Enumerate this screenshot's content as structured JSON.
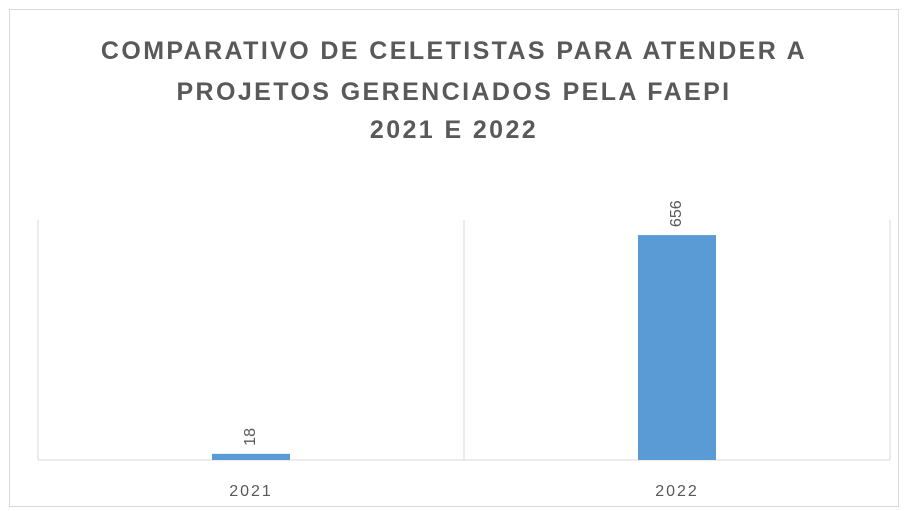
{
  "chart_data": {
    "type": "bar",
    "title": "COMPARATIVO DE CELETISTAS PARA ATENDER A PROJETOS GERENCIADOS PELA FAEPI",
    "subtitle": "2021 E 2022",
    "categories": [
      "2021",
      "2022"
    ],
    "values": [
      18,
      656
    ],
    "color": "#5b9bd5",
    "ylim": [
      0,
      700
    ]
  }
}
